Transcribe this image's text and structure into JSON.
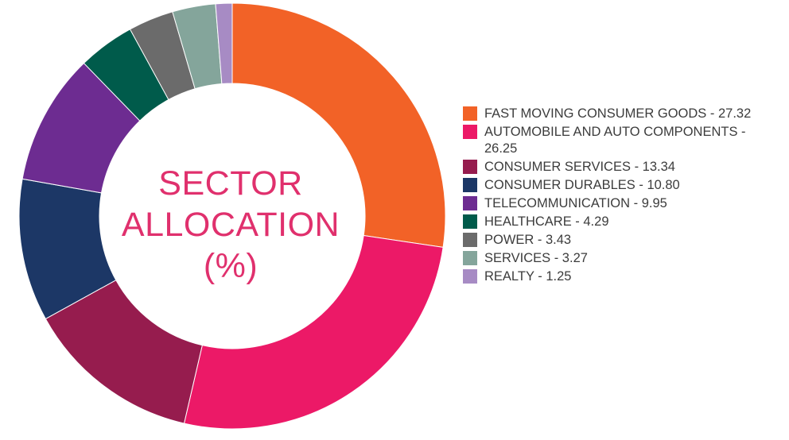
{
  "chart_data": {
    "type": "pie",
    "title_lines": [
      "SECTOR",
      "ALLOCATION",
      "(%)"
    ],
    "legend_position": "right",
    "donut": true,
    "categories": [
      "FAST MOVING CONSUMER GOODS",
      "AUTOMOBILE AND AUTO COMPONENTS",
      "CONSUMER SERVICES",
      "CONSUMER DURABLES",
      "TELECOMMUNICATION",
      "HEALTHCARE",
      "POWER",
      "SERVICES",
      "REALTY"
    ],
    "values": [
      27.32,
      26.25,
      13.34,
      10.8,
      9.95,
      4.29,
      3.43,
      3.27,
      1.25
    ],
    "legend_labels": [
      "FAST MOVING CONSUMER GOODS - 27.32",
      "AUTOMOBILE AND AUTO COMPONENTS - 26.25",
      "CONSUMER SERVICES - 13.34",
      "CONSUMER DURABLES - 10.80",
      "TELECOMMUNICATION - 9.95",
      "HEALTHCARE - 4.29",
      "POWER - 3.43",
      "SERVICES - 3.27",
      "REALTY - 1.25"
    ],
    "colors": [
      "#f26227",
      "#ec1967",
      "#961c4e",
      "#1c3766",
      "#6d2c91",
      "#005b4b",
      "#6b6b6b",
      "#84a59b",
      "#a78bc4"
    ]
  }
}
